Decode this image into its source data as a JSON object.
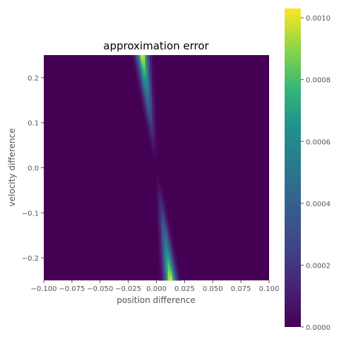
{
  "chart_data": {
    "type": "heatmap",
    "title": "approximation error",
    "xlabel": "position difference",
    "ylabel": "velocity difference",
    "xlim": [
      -0.1,
      0.1
    ],
    "ylim": [
      -0.25,
      0.25
    ],
    "x_ticks": [
      -0.1,
      -0.075,
      -0.05,
      -0.025,
      0.0,
      0.025,
      0.05,
      0.075,
      0.1
    ],
    "x_tick_labels": [
      "−0.100",
      "−0.075",
      "−0.050",
      "−0.025",
      "0.000",
      "0.025",
      "0.050",
      "0.075",
      "0.100"
    ],
    "y_ticks": [
      0.2,
      0.1,
      0.0,
      -0.1,
      -0.2
    ],
    "y_tick_labels": [
      "0.2",
      "0.1",
      "0.0",
      "−0.1",
      "−0.2"
    ],
    "colormap": "viridis",
    "colorbar": {
      "range": [
        0.0,
        0.00103
      ],
      "ticks": [
        0.0,
        0.0002,
        0.0004,
        0.0006,
        0.0008,
        0.001
      ],
      "tick_labels": [
        "0.0000",
        "0.0002",
        "0.0004",
        "0.0006",
        "0.0008",
        "0.0010"
      ]
    },
    "grid": false,
    "band": {
      "description_points": [
        {
          "v": 0.25,
          "x_center": -0.0125,
          "error": 0.00103
        },
        {
          "v": 0.2,
          "x_center": -0.0105,
          "error": 0.00095
        },
        {
          "v": 0.15,
          "x_center": -0.0085,
          "error": 0.0006
        },
        {
          "v": 0.1,
          "x_center": -0.0062,
          "error": 0.0003
        },
        {
          "v": 0.05,
          "x_center": -0.0038,
          "error": 8e-05
        },
        {
          "v": 0.0,
          "x_center": 0.0,
          "error": 0.0
        },
        {
          "v": -0.05,
          "x_center": 0.0038,
          "error": 8e-05
        },
        {
          "v": -0.1,
          "x_center": 0.0062,
          "error": 0.0003
        },
        {
          "v": -0.15,
          "x_center": 0.0085,
          "error": 0.0006
        },
        {
          "v": -0.2,
          "x_center": 0.0105,
          "error": 0.00095
        },
        {
          "v": -0.25,
          "x_center": 0.0125,
          "error": 0.00103
        }
      ]
    }
  }
}
